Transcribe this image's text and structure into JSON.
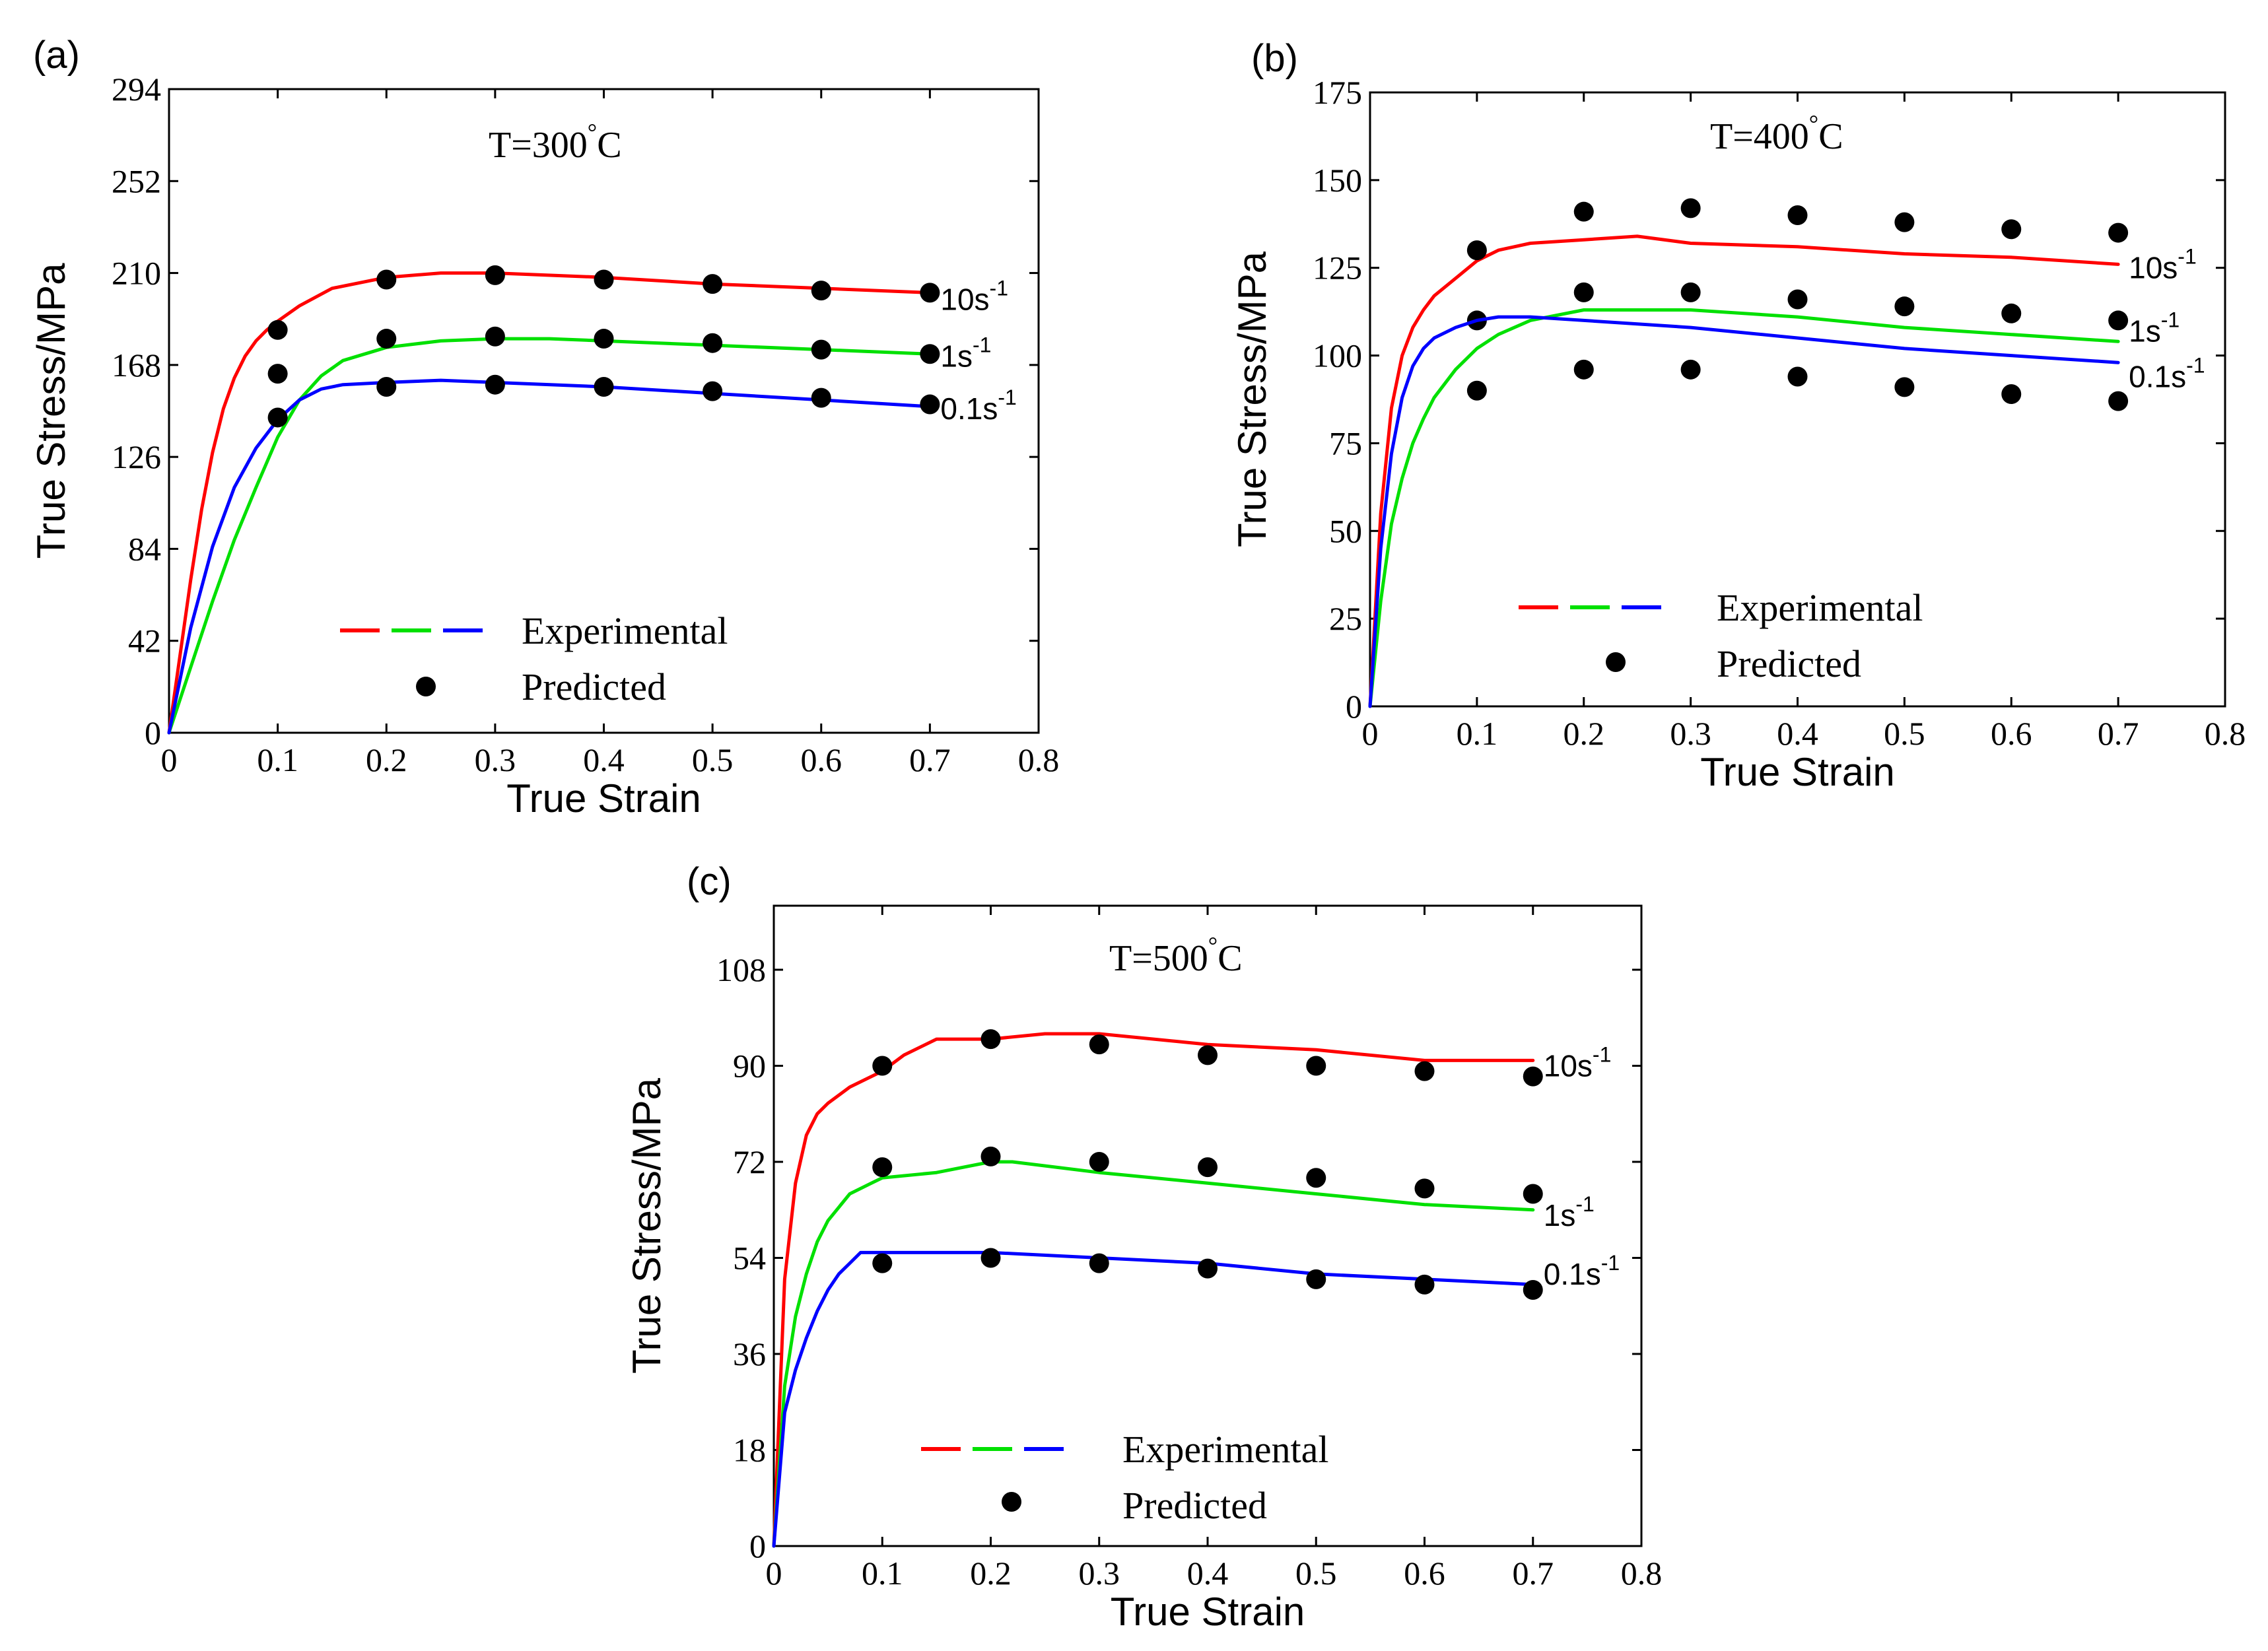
{
  "chart_data": [
    {
      "type": "line",
      "panel_label": "(a)",
      "title": "T=300°C",
      "temperature": "T=300",
      "unit": "C",
      "xlabel": "True Strain",
      "ylabel": "True Stress/MPa",
      "xlim": [
        0,
        0.8
      ],
      "ylim": [
        0,
        294
      ],
      "xticks": [
        0,
        0.1,
        0.2,
        0.3,
        0.4,
        0.5,
        0.6,
        0.7,
        0.8
      ],
      "yticks": [
        0,
        42,
        84,
        126,
        168,
        210,
        252,
        294
      ],
      "legend": {
        "experimental": "Experimental",
        "predicted": "Predicted",
        "position": "lower-center"
      },
      "series": [
        {
          "name": "10s-1",
          "base": "10s",
          "exp": "-1",
          "color": "#ff0000",
          "x": [
            0,
            0.01,
            0.02,
            0.03,
            0.04,
            0.05,
            0.06,
            0.07,
            0.08,
            0.09,
            0.1,
            0.12,
            0.15,
            0.2,
            0.25,
            0.3,
            0.4,
            0.5,
            0.6,
            0.7
          ],
          "y": [
            0,
            35,
            70,
            102,
            128,
            148,
            162,
            172,
            179,
            184,
            188,
            195,
            203,
            208,
            210,
            210,
            208,
            205,
            203,
            201
          ],
          "label_at": [
            0.7,
            198
          ],
          "predicted": {
            "x": [
              0.1,
              0.2,
              0.3,
              0.4,
              0.5,
              0.6,
              0.7
            ],
            "y": [
              184,
              207,
              209,
              207,
              205,
              202,
              201
            ]
          }
        },
        {
          "name": "1s-1",
          "base": "1s",
          "exp": "-1",
          "color": "#00e000",
          "x": [
            0,
            0.02,
            0.04,
            0.06,
            0.08,
            0.1,
            0.12,
            0.14,
            0.16,
            0.2,
            0.25,
            0.3,
            0.35,
            0.4,
            0.5,
            0.6,
            0.7
          ],
          "y": [
            0,
            30,
            60,
            88,
            112,
            135,
            152,
            163,
            170,
            176,
            179,
            180,
            180,
            179,
            177,
            175,
            173
          ],
          "label_at": [
            0.7,
            172
          ],
          "predicted": {
            "x": [
              0.1,
              0.2,
              0.3,
              0.4,
              0.5,
              0.6,
              0.7
            ],
            "y": [
              164,
              180,
              181,
              180,
              178,
              175,
              173
            ]
          }
        },
        {
          "name": "0.1s-1",
          "base": "0.1s",
          "exp": "-1",
          "color": "#0000ff",
          "x": [
            0,
            0.02,
            0.04,
            0.06,
            0.08,
            0.1,
            0.12,
            0.14,
            0.16,
            0.2,
            0.25,
            0.3,
            0.4,
            0.5,
            0.6,
            0.7
          ],
          "y": [
            0,
            48,
            85,
            112,
            130,
            143,
            152,
            157,
            159,
            160,
            161,
            160,
            158,
            155,
            152,
            149
          ],
          "label_at": [
            0.7,
            148
          ],
          "predicted": {
            "x": [
              0.1,
              0.2,
              0.3,
              0.4,
              0.5,
              0.6,
              0.7
            ],
            "y": [
              144,
              158,
              159,
              158,
              156,
              153,
              150
            ]
          }
        }
      ]
    },
    {
      "type": "line",
      "panel_label": "(b)",
      "title": "T=400°C",
      "temperature": "T=400",
      "unit": "C",
      "xlabel": "True Strain",
      "ylabel": "True Stress/MPa",
      "xlim": [
        0,
        0.8
      ],
      "ylim": [
        0,
        175
      ],
      "xticks": [
        0,
        0.1,
        0.2,
        0.3,
        0.4,
        0.5,
        0.6,
        0.7,
        0.8
      ],
      "yticks": [
        0,
        25,
        50,
        75,
        100,
        125,
        150,
        175
      ],
      "legend": {
        "experimental": "Experimental",
        "predicted": "Predicted",
        "position": "lower-center"
      },
      "series": [
        {
          "name": "10s-1",
          "base": "10s",
          "exp": "-1",
          "color": "#ff0000",
          "x": [
            0,
            0.01,
            0.02,
            0.03,
            0.04,
            0.05,
            0.06,
            0.08,
            0.1,
            0.12,
            0.15,
            0.2,
            0.25,
            0.3,
            0.4,
            0.5,
            0.6,
            0.7
          ],
          "y": [
            0,
            55,
            85,
            100,
            108,
            113,
            117,
            122,
            127,
            130,
            132,
            133,
            134,
            132,
            131,
            129,
            128,
            126
          ],
          "label_at": [
            0.7,
            125
          ],
          "predicted": {
            "x": [
              0.1,
              0.2,
              0.3,
              0.4,
              0.5,
              0.6,
              0.7
            ],
            "y": [
              130,
              141,
              142,
              140,
              138,
              136,
              135
            ]
          }
        },
        {
          "name": "1s-1",
          "base": "1s",
          "exp": "-1",
          "color": "#00e000",
          "x": [
            0,
            0.01,
            0.02,
            0.03,
            0.04,
            0.05,
            0.06,
            0.08,
            0.1,
            0.12,
            0.15,
            0.2,
            0.25,
            0.3,
            0.4,
            0.5,
            0.6,
            0.7
          ],
          "y": [
            0,
            30,
            52,
            65,
            75,
            82,
            88,
            96,
            102,
            106,
            110,
            113,
            113,
            113,
            111,
            108,
            106,
            104
          ],
          "label_at": [
            0.7,
            107
          ],
          "predicted": {
            "x": [
              0.1,
              0.2,
              0.3,
              0.4,
              0.5,
              0.6,
              0.7
            ],
            "y": [
              110,
              118,
              118,
              116,
              114,
              112,
              110
            ]
          }
        },
        {
          "name": "0.1s-1",
          "base": "0.1s",
          "exp": "-1",
          "color": "#0000ff",
          "x": [
            0,
            0.01,
            0.02,
            0.03,
            0.04,
            0.05,
            0.06,
            0.08,
            0.1,
            0.12,
            0.15,
            0.2,
            0.3,
            0.4,
            0.5,
            0.6,
            0.7
          ],
          "y": [
            0,
            45,
            72,
            88,
            97,
            102,
            105,
            108,
            110,
            111,
            111,
            110,
            108,
            105,
            102,
            100,
            98
          ],
          "label_at": [
            0.7,
            94
          ],
          "predicted": {
            "x": [
              0.1,
              0.2,
              0.3,
              0.4,
              0.5,
              0.6,
              0.7
            ],
            "y": [
              90,
              96,
              96,
              94,
              91,
              89,
              87
            ]
          }
        }
      ]
    },
    {
      "type": "line",
      "panel_label": "(c)",
      "title": "T=500°C",
      "temperature": "T=500",
      "unit": "C",
      "xlabel": "True Strain",
      "ylabel": "True Stress/MPa",
      "xlim": [
        0,
        0.8
      ],
      "ylim": [
        0,
        120
      ],
      "xticks": [
        0,
        0.1,
        0.2,
        0.3,
        0.4,
        0.5,
        0.6,
        0.7,
        0.8
      ],
      "yticks": [
        0,
        18,
        36,
        54,
        72,
        90,
        108
      ],
      "legend": {
        "experimental": "Experimental",
        "predicted": "Predicted",
        "position": "lower-center"
      },
      "series": [
        {
          "name": "10s-1",
          "base": "10s",
          "exp": "-1",
          "color": "#ff0000",
          "x": [
            0,
            0.01,
            0.02,
            0.03,
            0.04,
            0.05,
            0.07,
            0.1,
            0.12,
            0.15,
            0.2,
            0.25,
            0.3,
            0.4,
            0.5,
            0.6,
            0.7
          ],
          "y": [
            0,
            50,
            68,
            77,
            81,
            83,
            86,
            89,
            92,
            95,
            95,
            96,
            96,
            94,
            93,
            91,
            91
          ],
          "label_at": [
            0.7,
            90
          ],
          "predicted": {
            "x": [
              0.1,
              0.2,
              0.3,
              0.4,
              0.5,
              0.6,
              0.7
            ],
            "y": [
              90,
              95,
              94,
              92,
              90,
              89,
              88
            ]
          }
        },
        {
          "name": "1s-1",
          "base": "1s",
          "exp": "-1",
          "color": "#00e000",
          "x": [
            0,
            0.01,
            0.02,
            0.03,
            0.04,
            0.05,
            0.07,
            0.09,
            0.1,
            0.15,
            0.2,
            0.22,
            0.3,
            0.4,
            0.5,
            0.6,
            0.7
          ],
          "y": [
            0,
            30,
            43,
            51,
            57,
            61,
            66,
            68,
            69,
            70,
            72,
            72,
            70,
            68,
            66,
            64,
            63
          ],
          "label_at": [
            0.7,
            62
          ],
          "predicted": {
            "x": [
              0.1,
              0.2,
              0.3,
              0.4,
              0.5,
              0.6,
              0.7
            ],
            "y": [
              71,
              73,
              72,
              71,
              69,
              67,
              66
            ]
          }
        },
        {
          "name": "0.1s-1",
          "base": "0.1s",
          "exp": "-1",
          "color": "#0000ff",
          "x": [
            0,
            0.01,
            0.02,
            0.03,
            0.04,
            0.05,
            0.06,
            0.07,
            0.08,
            0.1,
            0.2,
            0.3,
            0.4,
            0.5,
            0.6,
            0.7
          ],
          "y": [
            0,
            25,
            33,
            39,
            44,
            48,
            51,
            53,
            55,
            55,
            55,
            54,
            53,
            51,
            50,
            49
          ],
          "label_at": [
            0.7,
            51
          ],
          "predicted": {
            "x": [
              0.1,
              0.2,
              0.3,
              0.4,
              0.5,
              0.6,
              0.7
            ],
            "y": [
              53,
              54,
              53,
              52,
              50,
              49,
              48
            ]
          }
        }
      ]
    }
  ]
}
